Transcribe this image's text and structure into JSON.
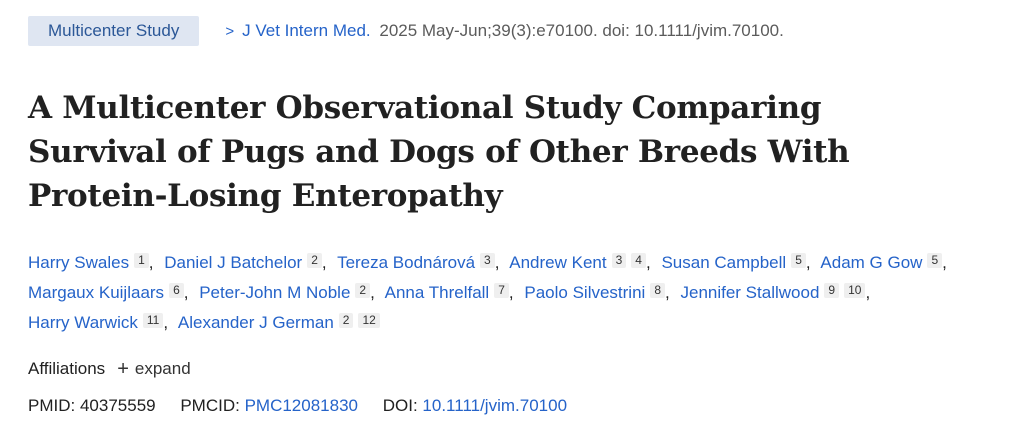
{
  "header": {
    "tag": "Multicenter Study",
    "chevron": ">",
    "journal": "J Vet Intern Med.",
    "citation": "2025 May-Jun;39(3):e70100. doi: 10.1111/jvim.70100."
  },
  "title": "A Multicenter Observational Study Comparing Survival of Pugs and Dogs of Other Breeds With Protein-Losing Enteropathy",
  "authors": [
    {
      "name": "Harry Swales",
      "affs": [
        "1"
      ]
    },
    {
      "name": "Daniel J Batchelor",
      "affs": [
        "2"
      ]
    },
    {
      "name": "Tereza Bodnárová",
      "affs": [
        "3"
      ]
    },
    {
      "name": "Andrew Kent",
      "affs": [
        "3",
        "4"
      ]
    },
    {
      "name": "Susan Campbell",
      "affs": [
        "5"
      ]
    },
    {
      "name": "Adam G Gow",
      "affs": [
        "5"
      ]
    },
    {
      "name": "Margaux Kuijlaars",
      "affs": [
        "6"
      ]
    },
    {
      "name": "Peter-John M Noble",
      "affs": [
        "2"
      ]
    },
    {
      "name": "Anna Threlfall",
      "affs": [
        "7"
      ]
    },
    {
      "name": "Paolo Silvestrini",
      "affs": [
        "8"
      ]
    },
    {
      "name": "Jennifer Stallwood",
      "affs": [
        "9",
        "10"
      ]
    },
    {
      "name": "Harry Warwick",
      "affs": [
        "11"
      ]
    },
    {
      "name": "Alexander J German",
      "affs": [
        "2",
        "12"
      ]
    }
  ],
  "affiliations": {
    "label": "Affiliations",
    "plus": "+",
    "expand": "expand"
  },
  "ids": {
    "pmid_label": "PMID:",
    "pmid": "40375559",
    "pmcid_label": "PMCID:",
    "pmcid": "PMC12081830",
    "doi_label": "DOI:",
    "doi": "10.1111/jvim.70100"
  }
}
